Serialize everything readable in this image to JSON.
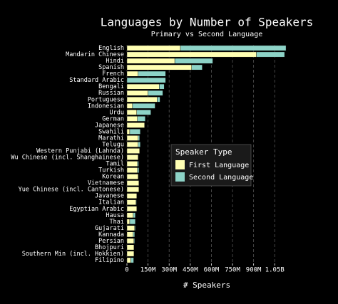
{
  "chart_data": {
    "type": "stacked_barh",
    "title": "Languages by Number of Speakers",
    "subtitle": "Primary vs Second Language",
    "x_label": "# Speakers",
    "legend_title": "Speaker Type",
    "categories": [
      "English",
      "Mandarin Chinese",
      "Hindi",
      "Spanish",
      "French",
      "Standard Arabic",
      "Bengali",
      "Russian",
      "Portuguese",
      "Indonesian",
      "Urdu",
      "German",
      "Japanese",
      "Swahili",
      "Marathi",
      "Telugu",
      "Western Punjabi (Lahnda)",
      "Wu Chinese (incl. Shanghainese)",
      "Tamil",
      "Turkish",
      "Korean",
      "Vietnamese",
      "Yue Chinese (incl. Cantonese)",
      "Javanese",
      "Italian",
      "Egyptian Arabic",
      "Hausa",
      "Thai",
      "Gujarati",
      "Kannada",
      "Persian",
      "Bhojpuri",
      "Southern Min (incl. Hokkien)",
      "Filipino"
    ],
    "series": [
      {
        "name": "First Language",
        "color": "#ffffb3",
        "values": [
          380000000,
          920000000,
          340000000,
          460000000,
          80000000,
          0,
          230000000,
          150000000,
          215000000,
          40000000,
          70000000,
          75000000,
          125000000,
          20000000,
          80000000,
          80000000,
          90000000,
          80000000,
          75000000,
          75000000,
          80000000,
          85000000,
          85000000,
          70000000,
          65000000,
          70000000,
          45000000,
          20000000,
          55000000,
          45000000,
          50000000,
          50000000,
          50000000,
          28000000
        ]
      },
      {
        "name": "Second Language",
        "color": "#8dd3c7",
        "values": [
          750000000,
          200000000,
          270000000,
          75000000,
          195000000,
          275000000,
          35000000,
          105000000,
          20000000,
          160000000,
          100000000,
          55000000,
          0,
          75000000,
          10000000,
          15000000,
          0,
          0,
          8000000,
          10000000,
          0,
          0,
          0,
          0,
          3000000,
          0,
          15000000,
          40000000,
          5000000,
          10000000,
          5000000,
          0,
          0,
          20000000
        ]
      }
    ],
    "xlim": [
      0,
      1150000000
    ],
    "xticks": [
      0,
      {
        "value": 150000000,
        "label": "150M"
      },
      {
        "value": 300000000,
        "label": "300M"
      },
      {
        "value": 450000000,
        "label": "450M"
      },
      {
        "value": 600000000,
        "label": "600M"
      },
      {
        "value": 750000000,
        "label": "750M"
      },
      {
        "value": 900000000,
        "label": "900M"
      },
      {
        "value": 1050000000,
        "label": "1.05B"
      }
    ],
    "grid": true,
    "legend": "center-right"
  }
}
